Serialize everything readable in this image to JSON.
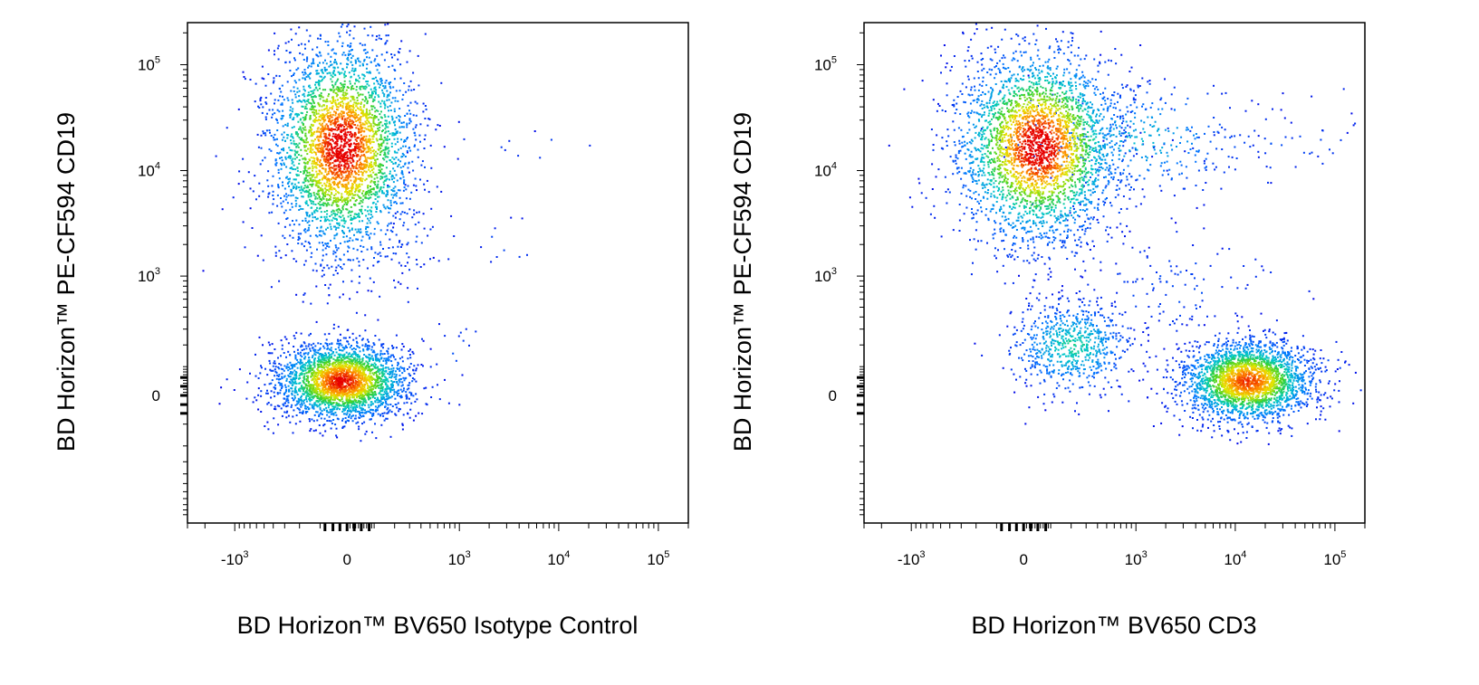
{
  "chart_data": [
    {
      "type": "scatter",
      "plot_style": "flow cytometry density dot plot (blue low density → green → yellow → red high density)",
      "xlabel": "BD Horizon™ BV650 Isotype Control",
      "ylabel": "BD Horizon™ PE-CF594 CD19",
      "x_scale": "biexponential",
      "y_scale": "biexponential",
      "xlim": [
        -3000,
        200000
      ],
      "ylim": [
        -1200,
        250000
      ],
      "x_ticks": [
        {
          "value": -1000,
          "base": "-10",
          "exp": "3"
        },
        {
          "value": 0,
          "base": "0",
          "exp": ""
        },
        {
          "value": 1000,
          "base": "10",
          "exp": "3"
        },
        {
          "value": 10000,
          "base": "10",
          "exp": "4"
        },
        {
          "value": 100000,
          "base": "10",
          "exp": "5"
        }
      ],
      "y_ticks": [
        {
          "value": 0,
          "base": "0",
          "exp": ""
        },
        {
          "value": 1000,
          "base": "10",
          "exp": "3"
        },
        {
          "value": 10000,
          "base": "10",
          "exp": "4"
        },
        {
          "value": 100000,
          "base": "10",
          "exp": "5"
        }
      ],
      "grid": false,
      "series": [
        {
          "cx": -20,
          "cy": 17000,
          "sx": 0.07,
          "sy": 0.105,
          "n": 3400,
          "peak": 1.0
        },
        {
          "cx": -20,
          "cy": 50,
          "sx": 0.065,
          "sy": 0.038,
          "n": 2800,
          "peak": 0.95
        },
        {
          "cx": 900,
          "cy": 180,
          "sx": 0.04,
          "sy": 0.035,
          "n": 12,
          "peak": 0.1
        },
        {
          "cx": 2500,
          "cy": 2000,
          "sx": 0.035,
          "sy": 0.03,
          "n": 10,
          "peak": 0.1
        },
        {
          "cx": 300,
          "cy": 2500,
          "sx": 0.03,
          "sy": 0.06,
          "n": 45,
          "peak": 0.1
        },
        {
          "cx": 10000,
          "cy": 18000,
          "sx": 0.06,
          "sy": 0.02,
          "n": 4,
          "peak": 0.1
        },
        {
          "cx": 2000,
          "cy": 17000,
          "sx": 0.04,
          "sy": 0.03,
          "n": 6,
          "peak": 0.1
        }
      ]
    },
    {
      "type": "scatter",
      "plot_style": "flow cytometry density dot plot (blue low density → green → yellow → red high density)",
      "xlabel": "BD Horizon™ BV650 CD3",
      "ylabel": "BD Horizon™ PE-CF594 CD19",
      "x_scale": "biexponential",
      "y_scale": "biexponential",
      "xlim": [
        -3000,
        200000
      ],
      "ylim": [
        -1200,
        250000
      ],
      "x_ticks": [
        {
          "value": -1000,
          "base": "-10",
          "exp": "3"
        },
        {
          "value": 0,
          "base": "0",
          "exp": ""
        },
        {
          "value": 1000,
          "base": "10",
          "exp": "3"
        },
        {
          "value": 10000,
          "base": "10",
          "exp": "4"
        },
        {
          "value": 100000,
          "base": "10",
          "exp": "5"
        }
      ],
      "y_ticks": [
        {
          "value": 0,
          "base": "0",
          "exp": ""
        },
        {
          "value": 1000,
          "base": "10",
          "exp": "3"
        },
        {
          "value": 10000,
          "base": "10",
          "exp": "4"
        },
        {
          "value": 100000,
          "base": "10",
          "exp": "5"
        }
      ],
      "grid": false,
      "series": [
        {
          "cx": 50,
          "cy": 17000,
          "sx": 0.08,
          "sy": 0.095,
          "n": 3200,
          "peak": 1.0
        },
        {
          "cx": 1000,
          "cy": 20000,
          "sx": 0.11,
          "sy": 0.06,
          "n": 320,
          "peak": 0.35
        },
        {
          "cx": 15000,
          "cy": 18000,
          "sx": 0.12,
          "sy": 0.04,
          "n": 60,
          "peak": 0.1
        },
        {
          "cx": 200,
          "cy": 200,
          "sx": 0.06,
          "sy": 0.045,
          "n": 700,
          "peak": 0.45
        },
        {
          "cx": 13000,
          "cy": 50,
          "sx": 0.065,
          "sy": 0.04,
          "n": 2600,
          "peak": 0.9
        },
        {
          "cx": 2500,
          "cy": 800,
          "sx": 0.1,
          "sy": 0.06,
          "n": 110,
          "peak": 0.1
        },
        {
          "cx": 200,
          "cy": 2500,
          "sx": 0.05,
          "sy": 0.05,
          "n": 40,
          "peak": 0.1
        },
        {
          "cx": 80000,
          "cy": 100,
          "sx": 0.03,
          "sy": 0.03,
          "n": 8,
          "peak": 0.1
        }
      ]
    }
  ]
}
